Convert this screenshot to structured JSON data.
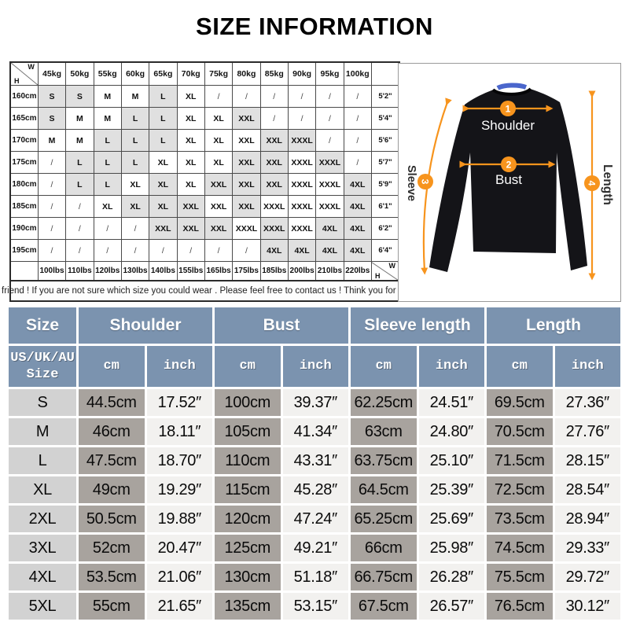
{
  "title": "SIZE INFORMATION",
  "note": "Dear friend ! If you are not sure which size you could wear . Please feel free to contact us ! Think you for buying !",
  "matrix": {
    "corner": {
      "w": "W",
      "h": "H"
    },
    "weights": [
      "45kg",
      "50kg",
      "55kg",
      "60kg",
      "65kg",
      "70kg",
      "75kg",
      "80kg",
      "85kg",
      "90kg",
      "95kg",
      "100kg"
    ],
    "pounds": [
      "100lbs",
      "110lbs",
      "120lbs",
      "130lbs",
      "140lbs",
      "155lbs",
      "165lbs",
      "175lbs",
      "185lbs",
      "200lbs",
      "210lbs",
      "220lbs"
    ],
    "rows": [
      {
        "height": "160cm",
        "feet": "5'2\"",
        "cells": [
          "S",
          "S",
          "M",
          "M",
          "L",
          "XL",
          "/",
          "/",
          "/",
          "/",
          "/",
          "/"
        ],
        "shade": [
          1,
          1,
          0,
          0,
          1,
          0,
          0,
          0,
          0,
          0,
          0,
          0
        ]
      },
      {
        "height": "165cm",
        "feet": "5'4\"",
        "cells": [
          "S",
          "M",
          "M",
          "L",
          "L",
          "XL",
          "XL",
          "XXL",
          "/",
          "/",
          "/",
          "/"
        ],
        "shade": [
          1,
          0,
          0,
          1,
          1,
          0,
          0,
          1,
          0,
          0,
          0,
          0
        ]
      },
      {
        "height": "170cm",
        "feet": "5'6\"",
        "cells": [
          "M",
          "M",
          "L",
          "L",
          "L",
          "XL",
          "XL",
          "XXL",
          "XXL",
          "XXXL",
          "/",
          "/"
        ],
        "shade": [
          0,
          0,
          1,
          1,
          1,
          0,
          0,
          0,
          1,
          1,
          0,
          0
        ]
      },
      {
        "height": "175cm",
        "feet": "5'7\"",
        "cells": [
          "/",
          "L",
          "L",
          "L",
          "XL",
          "XL",
          "XL",
          "XXL",
          "XXL",
          "XXXL",
          "XXXL",
          "/"
        ],
        "shade": [
          0,
          1,
          1,
          1,
          0,
          0,
          0,
          1,
          1,
          0,
          1,
          0
        ]
      },
      {
        "height": "180cm",
        "feet": "5'9\"",
        "cells": [
          "/",
          "L",
          "L",
          "XL",
          "XL",
          "XL",
          "XXL",
          "XXL",
          "XXL",
          "XXXL",
          "XXXL",
          "4XL"
        ],
        "shade": [
          0,
          1,
          1,
          0,
          1,
          0,
          1,
          1,
          1,
          0,
          0,
          1
        ]
      },
      {
        "height": "185cm",
        "feet": "6'1\"",
        "cells": [
          "/",
          "/",
          "XL",
          "XL",
          "XL",
          "XXL",
          "XXL",
          "XXL",
          "XXXL",
          "XXXL",
          "XXXL",
          "4XL"
        ],
        "shade": [
          0,
          0,
          0,
          1,
          1,
          1,
          0,
          1,
          0,
          0,
          0,
          1
        ]
      },
      {
        "height": "190cm",
        "feet": "6'2\"",
        "cells": [
          "/",
          "/",
          "/",
          "/",
          "XXL",
          "XXL",
          "XXL",
          "XXXL",
          "XXXL",
          "XXXL",
          "4XL",
          "4XL"
        ],
        "shade": [
          0,
          0,
          0,
          0,
          1,
          1,
          1,
          0,
          1,
          0,
          1,
          1
        ]
      },
      {
        "height": "195cm",
        "feet": "6'4\"",
        "cells": [
          "/",
          "/",
          "/",
          "/",
          "/",
          "/",
          "/",
          "/",
          "4XL",
          "4XL",
          "4XL",
          "4XL"
        ],
        "shade": [
          0,
          0,
          0,
          0,
          0,
          0,
          0,
          0,
          1,
          1,
          1,
          1
        ]
      }
    ]
  },
  "diagram": {
    "shoulder_label": "Shoulder",
    "bust_label": "Bust",
    "sleeve_label": "Sleeve",
    "length_label": "Length",
    "badges": [
      "1",
      "2",
      "3",
      "4"
    ]
  },
  "size_table": {
    "group_headers": [
      "Size",
      "Shoulder",
      "Bust",
      "Sleeve length",
      "Length"
    ],
    "sub_size_header": "US/UK/AU\nSize",
    "unit_cm": "cm",
    "unit_inch": "inch",
    "rows": [
      {
        "size": "S",
        "cells": [
          "44.5cm",
          "17.52″",
          "100cm",
          "39.37″",
          "62.25cm",
          "24.51″",
          "69.5cm",
          "27.36″"
        ]
      },
      {
        "size": "M",
        "cells": [
          "46cm",
          "18.11″",
          "105cm",
          "41.34″",
          "63cm",
          "24.80″",
          "70.5cm",
          "27.76″"
        ]
      },
      {
        "size": "L",
        "cells": [
          "47.5cm",
          "18.70″",
          "110cm",
          "43.31″",
          "63.75cm",
          "25.10″",
          "71.5cm",
          "28.15″"
        ]
      },
      {
        "size": "XL",
        "cells": [
          "49cm",
          "19.29″",
          "115cm",
          "45.28″",
          "64.5cm",
          "25.39″",
          "72.5cm",
          "28.54″"
        ]
      },
      {
        "size": "2XL",
        "cells": [
          "50.5cm",
          "19.88″",
          "120cm",
          "47.24″",
          "65.25cm",
          "25.69″",
          "73.5cm",
          "28.94″"
        ]
      },
      {
        "size": "3XL",
        "cells": [
          "52cm",
          "20.47″",
          "125cm",
          "49.21″",
          "66cm",
          "25.98″",
          "74.5cm",
          "29.33″"
        ]
      },
      {
        "size": "4XL",
        "cells": [
          "53.5cm",
          "21.06″",
          "130cm",
          "51.18″",
          "66.75cm",
          "26.28″",
          "75.5cm",
          "29.72″"
        ]
      },
      {
        "size": "5XL",
        "cells": [
          "55cm",
          "21.65″",
          "135cm",
          "53.15″",
          "67.5cm",
          "26.57″",
          "76.5cm",
          "30.12″"
        ]
      }
    ]
  },
  "colors": {
    "accent_orange": "#F7941D",
    "header_blue": "#7B93AF",
    "cm_cell_gray": "#A8A39E",
    "size_cell_gray": "#D2D2D2",
    "inch_cell_light": "#F2F1EF",
    "matrix_shade_gray": "#E0E0E0"
  }
}
